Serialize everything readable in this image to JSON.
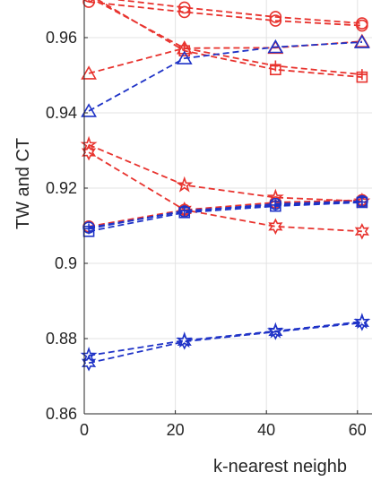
{
  "chart_data": {
    "type": "line",
    "xlabel": "k-nearest neighb",
    "ylabel": "TW and CT",
    "xlim": [
      0,
      63
    ],
    "ylim": [
      0.86,
      0.97
    ],
    "x_ticks": [
      0,
      20,
      40,
      60
    ],
    "x_tick_labels": [
      "0",
      "20",
      "40",
      "60"
    ],
    "y_ticks": [
      0.86,
      0.88,
      0.9,
      0.92,
      0.94,
      0.96
    ],
    "y_tick_labels": [
      "0.86",
      "0.88",
      "0.9",
      "0.92",
      "0.94",
      "0.96"
    ],
    "grid": true,
    "colors": {
      "red": "#e8332e",
      "blue": "#1f33c7",
      "grid": "#e3e3e3",
      "axis": "#262626"
    },
    "series": [
      {
        "color": "#e8332e",
        "marker": "circle",
        "x": [
          1,
          22,
          42,
          61
        ],
        "y": [
          0.971,
          0.968,
          0.9655,
          0.9638
        ]
      },
      {
        "color": "#e8332e",
        "marker": "circle",
        "x": [
          1,
          22,
          42,
          61
        ],
        "y": [
          0.9695,
          0.9668,
          0.9645,
          0.9632
        ]
      },
      {
        "color": "#e8332e",
        "marker": "square",
        "x": [
          1,
          22,
          42,
          61
        ],
        "y": [
          0.9715,
          0.9565,
          0.9515,
          0.9495
        ]
      },
      {
        "color": "#e8332e",
        "marker": "plus",
        "x": [
          1,
          22,
          42,
          61
        ],
        "y": [
          0.9708,
          0.9572,
          0.9525,
          0.9502
        ]
      },
      {
        "color": "#e8332e",
        "marker": "triangle",
        "x": [
          1,
          22,
          42,
          61
        ],
        "y": [
          0.9505,
          0.9572,
          0.9573,
          0.959
        ]
      },
      {
        "color": "#1f33c7",
        "marker": "triangle",
        "x": [
          1,
          22,
          42,
          61
        ],
        "y": [
          0.9405,
          0.9545,
          0.9575,
          0.9588
        ]
      },
      {
        "color": "#e8332e",
        "marker": "star",
        "x": [
          1,
          22,
          42,
          61
        ],
        "y": [
          0.9315,
          0.9208,
          0.9175,
          0.9165
        ]
      },
      {
        "color": "#e8332e",
        "marker": "hexagram",
        "x": [
          1,
          22,
          42,
          61
        ],
        "y": [
          0.9295,
          0.9142,
          0.9098,
          0.9085
        ]
      },
      {
        "color": "#e8332e",
        "marker": "circle",
        "x": [
          1,
          22,
          42,
          61
        ],
        "y": [
          0.9098,
          0.9142,
          0.9162,
          0.9168
        ]
      },
      {
        "color": "#1f33c7",
        "marker": "circle",
        "x": [
          1,
          22,
          42,
          61
        ],
        "y": [
          0.9095,
          0.9138,
          0.9158,
          0.9165
        ]
      },
      {
        "color": "#1f33c7",
        "marker": "square",
        "x": [
          1,
          22,
          42,
          61
        ],
        "y": [
          0.9085,
          0.9135,
          0.9152,
          0.9162
        ]
      },
      {
        "color": "#1f33c7",
        "marker": "plus",
        "x": [
          1,
          22,
          42,
          61
        ],
        "y": [
          0.9092,
          0.914,
          0.9155,
          0.9163
        ]
      },
      {
        "color": "#1f33c7",
        "marker": "star",
        "x": [
          1,
          22,
          42,
          61
        ],
        "y": [
          0.8755,
          0.8795,
          0.882,
          0.8845
        ]
      },
      {
        "color": "#1f33c7",
        "marker": "hexagram",
        "x": [
          1,
          22,
          42,
          61
        ],
        "y": [
          0.8735,
          0.8792,
          0.8818,
          0.8842
        ]
      }
    ]
  }
}
